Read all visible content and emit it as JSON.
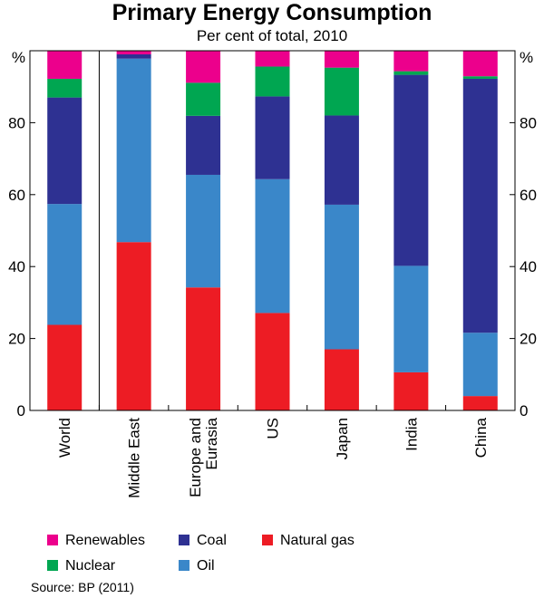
{
  "chart_data": {
    "type": "bar",
    "stacked": true,
    "title": "Primary Energy Consumption",
    "subtitle": "Per cent of total, 2010",
    "ylabel_left": "%",
    "ylabel_right": "%",
    "ylim": [
      0,
      100
    ],
    "yticks": [
      0,
      20,
      40,
      60,
      80
    ],
    "categories": [
      "World",
      "Middle East",
      "Europe and Eurasia",
      "US",
      "Japan",
      "India",
      "China"
    ],
    "category_lines": [
      [
        "World"
      ],
      [
        "Middle East"
      ],
      [
        "Europe and",
        "Eurasia"
      ],
      [
        "US"
      ],
      [
        "Japan"
      ],
      [
        "India"
      ],
      [
        "China"
      ]
    ],
    "series": [
      {
        "name": "Natural gas",
        "color": "#ed1c24",
        "values": [
          23.8,
          46.8,
          34.2,
          27.1,
          17.0,
          10.6,
          4.0
        ]
      },
      {
        "name": "Oil",
        "color": "#3a87c9",
        "values": [
          33.6,
          51.0,
          31.3,
          37.2,
          40.2,
          29.6,
          17.6
        ]
      },
      {
        "name": "Coal",
        "color": "#2e3192",
        "values": [
          29.6,
          1.2,
          16.4,
          23.0,
          24.8,
          53.1,
          70.6
        ]
      },
      {
        "name": "Nuclear",
        "color": "#00a651",
        "values": [
          5.2,
          0.0,
          9.2,
          8.3,
          13.3,
          1.0,
          0.7
        ]
      },
      {
        "name": "Renewables",
        "color": "#ec008c",
        "values": [
          7.8,
          1.0,
          8.9,
          4.4,
          4.7,
          5.7,
          7.1
        ]
      }
    ],
    "legend_position": "bottom"
  },
  "legend_title": "",
  "source": "Source: BP (2011)"
}
